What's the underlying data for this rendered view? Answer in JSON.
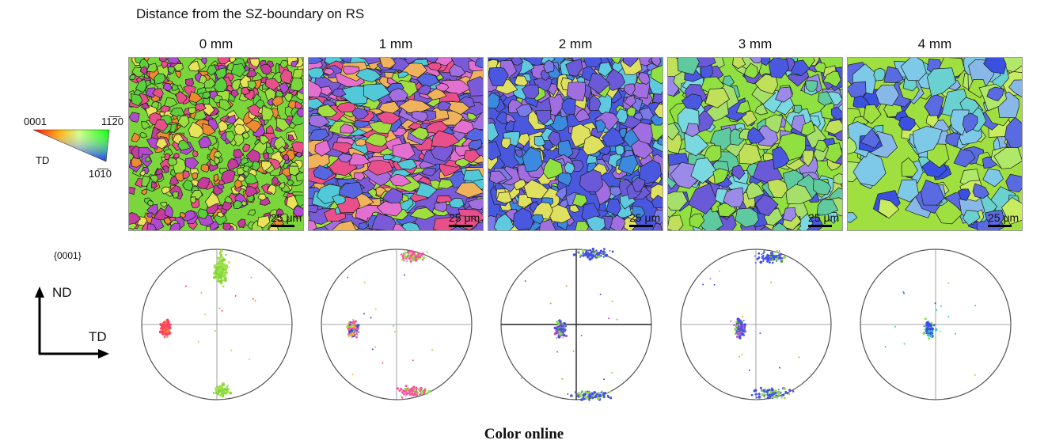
{
  "header": "Distance from the SZ-boundary on RS",
  "columns": [
    {
      "label": "0 mm",
      "scale": "25 μm",
      "map_palette": [
        "#7ad63a",
        "#5ccf3c",
        "#e8508a",
        "#c43c9c",
        "#f08a30",
        "#9fe040",
        "#b14ad0",
        "#e9e35a"
      ],
      "pole_colors": [
        "#ff4060",
        "#ff8a30",
        "#7fd63a",
        "#a3e04c"
      ]
    },
    {
      "label": "1 mm",
      "scale": "25 μm",
      "map_palette": [
        "#7a5ad8",
        "#a26ee0",
        "#e36fd0",
        "#9fe040",
        "#5566e0",
        "#f0b25a",
        "#52c9d8",
        "#e94f8a"
      ],
      "pole_colors": [
        "#ff50a0",
        "#ffb030",
        "#3a4ae0",
        "#8fe04a"
      ]
    },
    {
      "label": "2 mm",
      "scale": "25 μm",
      "map_palette": [
        "#4a58e0",
        "#6a5ad8",
        "#8fe040",
        "#5fc9e0",
        "#a06ee0",
        "#3b8ae0",
        "#e0e060",
        "#7a7ae8"
      ],
      "pole_colors": [
        "#4650e6",
        "#8fe040",
        "#c04ad0",
        "#e0a030"
      ]
    },
    {
      "label": "3 mm",
      "scale": "25 μm",
      "map_palette": [
        "#8fe040",
        "#6a5ad8",
        "#7ad8e0",
        "#4a58e0",
        "#a6e06a",
        "#5fc9a0",
        "#9b8ae8",
        "#c0e05a"
      ],
      "pole_colors": [
        "#4650e6",
        "#8fe040",
        "#c060d0",
        "#e0a030"
      ]
    },
    {
      "label": "4 mm",
      "scale": "25 μm",
      "map_palette": [
        "#9fe040",
        "#3a50e0",
        "#7fc9e8",
        "#5a6ae0",
        "#b0e86a",
        "#6ad0d0",
        "#88b8e8",
        "#c8ec60"
      ],
      "pole_colors": [
        "#3a48e6",
        "#8fe040",
        "#40c0c0"
      ]
    }
  ],
  "ipf_legend": {
    "top_left": "0001",
    "top_right": "11̅2̅0",
    "bottom": "10̅1̅0",
    "direction": "TD"
  },
  "pole_figure_label": "{0001}",
  "axes": {
    "vertical": "ND",
    "horizontal": "TD"
  },
  "caption": "Color online"
}
